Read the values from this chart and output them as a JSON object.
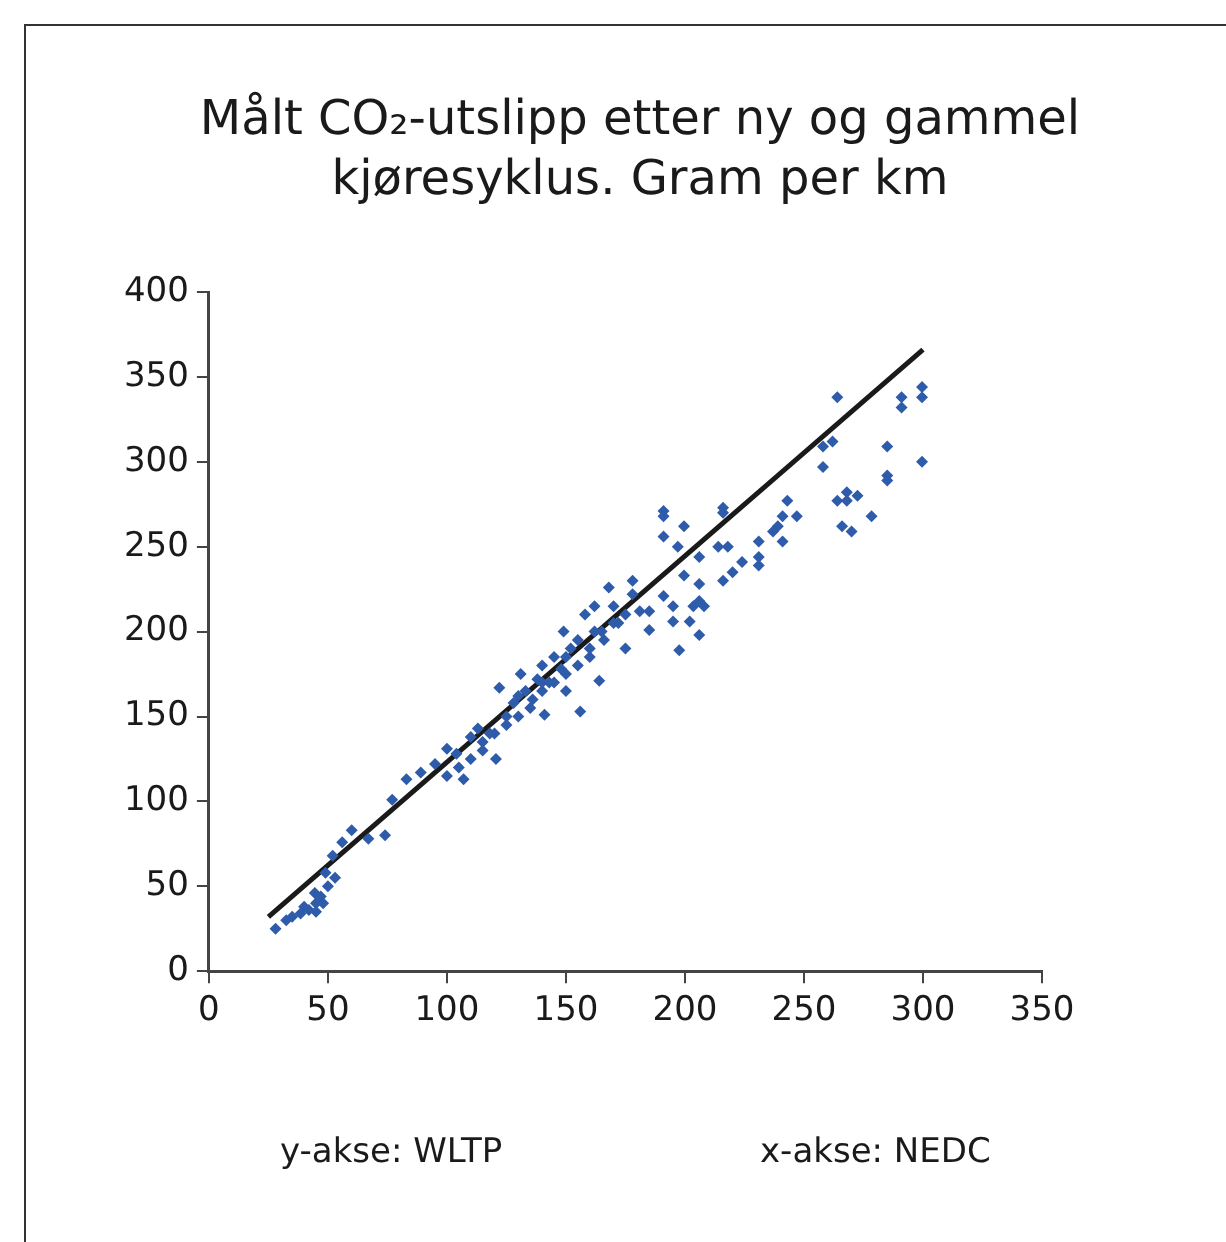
{
  "chart_data": {
    "type": "scatter",
    "title": "Målt CO₂-utslipp etter ny og gammel kjøresyklus. Gram per km",
    "annotations": [
      "y-akse: WLTP",
      "x-akse: NEDC"
    ],
    "xlim": [
      0,
      350
    ],
    "xticks": [
      0,
      50,
      100,
      150,
      200,
      250,
      300,
      350
    ],
    "ylim": [
      0,
      400
    ],
    "yticks": [
      0,
      50,
      100,
      150,
      200,
      250,
      300,
      350,
      400
    ],
    "grid": false,
    "legend": false,
    "marker": "diamond",
    "series": [
      {
        "color": "#2e5caa",
        "x": [
          28,
          32.5,
          35,
          38.5,
          40,
          42,
          44.5,
          45,
          45,
          47,
          48,
          49,
          50,
          52,
          53,
          56,
          60,
          67,
          74,
          77,
          83,
          89,
          95,
          100,
          100,
          104,
          105,
          107,
          110,
          110,
          113,
          115,
          115,
          118,
          120,
          120.6,
          122,
          125,
          125,
          128,
          130,
          130,
          131,
          133,
          135,
          136,
          138,
          140,
          140,
          140,
          141,
          143,
          145,
          145,
          148,
          149,
          150,
          150,
          150,
          152,
          155,
          155,
          156,
          158,
          160,
          160,
          162,
          162,
          164,
          165,
          166,
          168,
          170,
          170,
          172,
          175,
          175,
          178,
          178,
          181,
          185,
          185,
          191,
          191,
          191,
          191,
          195,
          195,
          197,
          197.6,
          199.6,
          199.6,
          202,
          203.5,
          206,
          206,
          206,
          206,
          208,
          214,
          216,
          216,
          216,
          218,
          220,
          224,
          231,
          231,
          231,
          237,
          239,
          241,
          241,
          243,
          247,
          258,
          258,
          262,
          264,
          264,
          266,
          268,
          268,
          270,
          272.5,
          278.4,
          285,
          285,
          285,
          291,
          291,
          299.6,
          299.6,
          299.6
        ],
        "values": [
          25,
          30,
          32,
          34,
          38,
          36,
          46,
          40,
          35,
          44,
          40,
          58,
          50,
          68,
          55,
          76,
          83,
          78,
          80,
          101,
          113,
          117,
          122,
          131,
          115,
          128,
          120,
          113,
          138,
          125,
          143,
          135,
          130,
          140,
          140,
          125,
          167,
          150,
          145,
          158,
          162,
          150,
          175,
          165,
          155,
          160,
          172,
          180,
          165,
          170,
          151,
          170,
          185,
          170,
          178,
          200,
          165,
          175,
          185,
          190,
          195,
          180,
          153,
          210,
          185,
          190,
          200,
          215,
          171,
          200,
          195,
          226,
          215,
          205,
          205,
          190,
          210,
          222,
          230,
          212,
          212,
          201,
          271,
          268,
          256,
          221,
          215,
          206,
          250,
          189,
          262,
          233,
          206,
          215,
          244,
          228,
          218,
          198,
          215,
          250,
          230,
          273,
          270,
          250,
          235,
          241,
          253,
          244,
          239,
          259,
          262,
          268,
          253,
          277,
          268,
          309,
          297,
          312,
          338,
          277,
          262,
          282,
          277,
          259,
          280,
          268,
          309,
          292,
          289,
          338,
          332,
          344,
          338,
          300
        ]
      },
      {
        "type": "line",
        "color": "#1a1a1a",
        "marker": "none",
        "x": [
          25,
          300
        ],
        "values": [
          32,
          366
        ]
      }
    ]
  }
}
